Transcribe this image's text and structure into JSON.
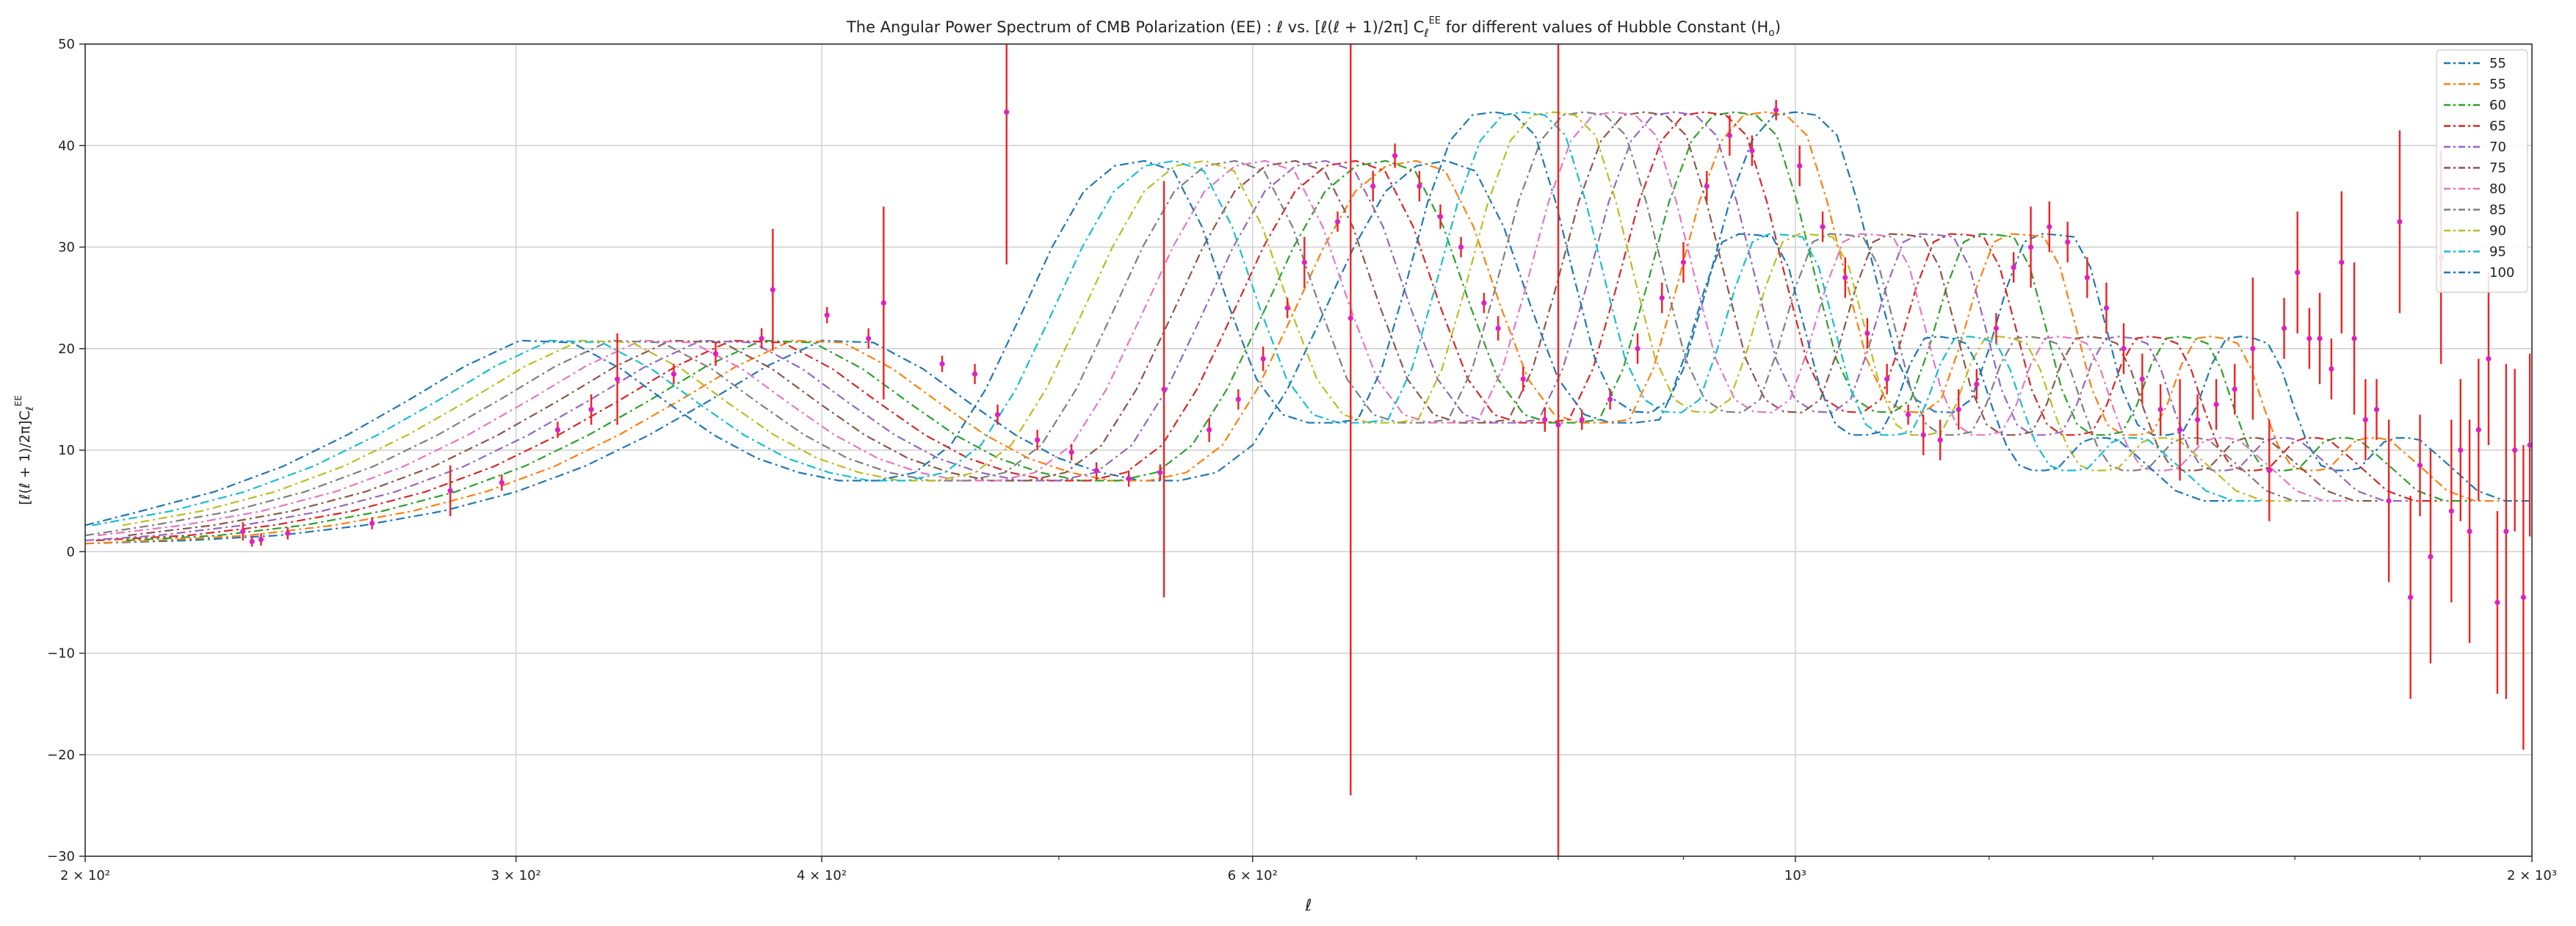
{
  "chart_data": {
    "type": "line",
    "title": "The Angular Power Spectrum of CMB Polarization (EE) : ℓ vs. [ℓ(ℓ + 1)/2π] Cℓ^EE for different values of Hubble Constant (H₀)",
    "xlabel": "ℓ",
    "ylabel": "[ℓ(ℓ + 1)/2π] Cℓ^EE",
    "xscale": "log",
    "xlim": [
      200,
      2000
    ],
    "ylim": [
      -30,
      50
    ],
    "grid": true,
    "legend_position": "top-right",
    "x_ticks": [
      {
        "value": 200,
        "label": "2 × 10²"
      },
      {
        "value": 300,
        "label": "3 × 10²"
      },
      {
        "value": 400,
        "label": "4 × 10²"
      },
      {
        "value": 600,
        "label": "6 × 10²"
      },
      {
        "value": 1000,
        "label": "10³"
      },
      {
        "value": 2000,
        "label": "2 × 10³"
      }
    ],
    "y_ticks": [
      -30,
      -20,
      -10,
      0,
      10,
      20,
      30,
      40,
      50
    ],
    "series": [
      {
        "name": "55",
        "color": "#1f77b4",
        "values": [
          [
            200,
            0.8
          ],
          [
            220,
            1.1
          ],
          [
            240,
            1.6
          ],
          [
            260,
            2.6
          ],
          [
            280,
            4.0
          ],
          [
            300,
            5.9
          ],
          [
            320,
            8.4
          ],
          [
            340,
            11.5
          ],
          [
            360,
            14.9
          ],
          [
            380,
            18.3
          ],
          [
            400,
            20.8
          ],
          [
            420,
            20.6
          ],
          [
            440,
            18.0
          ],
          [
            460,
            14.6
          ],
          [
            480,
            11.5
          ],
          [
            500,
            9.2
          ],
          [
            520,
            7.8
          ],
          [
            540,
            7.0
          ],
          [
            560,
            7.0
          ],
          [
            580,
            7.8
          ],
          [
            600,
            10.5
          ],
          [
            620,
            16.0
          ],
          [
            640,
            23.0
          ],
          [
            660,
            30.0
          ],
          [
            680,
            35.5
          ],
          [
            700,
            38.0
          ],
          [
            720,
            38.5
          ],
          [
            740,
            37.5
          ],
          [
            760,
            32.0
          ],
          [
            780,
            24.0
          ],
          [
            800,
            17.0
          ],
          [
            820,
            13.5
          ],
          [
            840,
            12.7
          ],
          [
            860,
            12.7
          ],
          [
            880,
            13.0
          ],
          [
            900,
            18.0
          ],
          [
            920,
            26.0
          ],
          [
            940,
            34.5
          ],
          [
            960,
            40.5
          ],
          [
            980,
            43.0
          ],
          [
            1000,
            43.3
          ],
          [
            1020,
            43.0
          ],
          [
            1040,
            41.0
          ],
          [
            1060,
            34.5
          ],
          [
            1080,
            26.5
          ],
          [
            1100,
            19.0
          ],
          [
            1120,
            15.0
          ],
          [
            1140,
            13.8
          ],
          [
            1160,
            13.7
          ],
          [
            1180,
            15.0
          ],
          [
            1200,
            20.0
          ],
          [
            1220,
            26.0
          ],
          [
            1240,
            30.5
          ],
          [
            1260,
            31.3
          ],
          [
            1280,
            31.2
          ],
          [
            1300,
            31.0
          ],
          [
            1320,
            28.0
          ],
          [
            1340,
            22.0
          ],
          [
            1360,
            16.0
          ],
          [
            1380,
            12.5
          ],
          [
            1400,
            11.5
          ],
          [
            1420,
            11.5
          ],
          [
            1440,
            11.8
          ],
          [
            1460,
            14.5
          ],
          [
            1480,
            18.5
          ],
          [
            1500,
            21.0
          ],
          [
            1520,
            21.2
          ],
          [
            1540,
            21.0
          ],
          [
            1560,
            20.5
          ],
          [
            1580,
            18.0
          ],
          [
            1600,
            14.0
          ],
          [
            1620,
            10.5
          ],
          [
            1640,
            8.5
          ],
          [
            1660,
            8.0
          ],
          [
            1680,
            8.0
          ],
          [
            1700,
            8.2
          ],
          [
            1720,
            9.5
          ],
          [
            1740,
            10.8
          ],
          [
            1760,
            11.2
          ],
          [
            1780,
            11.2
          ],
          [
            1800,
            11.0
          ],
          [
            1830,
            9.5
          ],
          [
            1860,
            8.0
          ],
          [
            1900,
            6.0
          ],
          [
            1950,
            5.0
          ],
          [
            2000,
            5.0
          ]
        ]
      },
      {
        "name": "55",
        "color": "#ff7f0e",
        "values": []
      },
      {
        "name": "60",
        "color": "#2ca02c",
        "values": []
      },
      {
        "name": "65",
        "color": "#d62728",
        "values": []
      },
      {
        "name": "70",
        "color": "#9467bd",
        "values": []
      },
      {
        "name": "75",
        "color": "#8c564b",
        "values": []
      },
      {
        "name": "80",
        "color": "#e377c2",
        "values": []
      },
      {
        "name": "85",
        "color": "#7f7f7f",
        "values": []
      },
      {
        "name": "90",
        "color": "#bcbd22",
        "values": []
      },
      {
        "name": "95",
        "color": "#17becf",
        "values": []
      },
      {
        "name": "100",
        "color": "#1f77b4",
        "values": []
      }
    ],
    "series_shift_ratio": 0.972,
    "data_points": {
      "name": "measurements",
      "marker_color": "#e020c0",
      "errorbar_color": "#ee2222",
      "points": [
        {
          "x": 232,
          "y": 2.0,
          "err": 0.9
        },
        {
          "x": 234,
          "y": 1.0,
          "err": 0.5
        },
        {
          "x": 236,
          "y": 1.2,
          "err": 0.6
        },
        {
          "x": 242,
          "y": 1.8,
          "err": 0.6
        },
        {
          "x": 262,
          "y": 2.8,
          "err": 0.6
        },
        {
          "x": 282,
          "y": 6.0,
          "err": 2.5
        },
        {
          "x": 296,
          "y": 6.8,
          "err": 0.8
        },
        {
          "x": 312,
          "y": 12.0,
          "err": 0.8
        },
        {
          "x": 322,
          "y": 14.0,
          "err": 1.5
        },
        {
          "x": 330,
          "y": 17.0,
          "err": 4.5
        },
        {
          "x": 348,
          "y": 17.5,
          "err": 1.0
        },
        {
          "x": 362,
          "y": 19.5,
          "err": 1.2
        },
        {
          "x": 378,
          "y": 21.0,
          "err": 1.0
        },
        {
          "x": 382,
          "y": 25.8,
          "err": 6.0
        },
        {
          "x": 402,
          "y": 23.3,
          "err": 0.8
        },
        {
          "x": 418,
          "y": 21.0,
          "err": 1.0
        },
        {
          "x": 424,
          "y": 24.5,
          "err": 9.5
        },
        {
          "x": 448,
          "y": 18.5,
          "err": 0.8
        },
        {
          "x": 462,
          "y": 17.5,
          "err": 1.0
        },
        {
          "x": 472,
          "y": 13.5,
          "err": 1.0
        },
        {
          "x": 476,
          "y": 43.3,
          "err": 15.0
        },
        {
          "x": 490,
          "y": 11.0,
          "err": 1.0
        },
        {
          "x": 506,
          "y": 9.8,
          "err": 0.8
        },
        {
          "x": 518,
          "y": 8.0,
          "err": 0.8
        },
        {
          "x": 534,
          "y": 7.2,
          "err": 0.8
        },
        {
          "x": 550,
          "y": 7.8,
          "err": 0.8
        },
        {
          "x": 552,
          "y": 16.0,
          "err": 20.5
        },
        {
          "x": 576,
          "y": 12.0,
          "err": 1.2
        },
        {
          "x": 592,
          "y": 15.0,
          "err": 1.0
        },
        {
          "x": 606,
          "y": 19.0,
          "err": 1.2
        },
        {
          "x": 620,
          "y": 24.0,
          "err": 1.0
        },
        {
          "x": 630,
          "y": 28.5,
          "err": 2.5
        },
        {
          "x": 650,
          "y": 32.5,
          "err": 1.0
        },
        {
          "x": 658,
          "y": 23.0,
          "err": 47.0
        },
        {
          "x": 672,
          "y": 36.0,
          "err": 1.5
        },
        {
          "x": 686,
          "y": 39.0,
          "err": 1.2
        },
        {
          "x": 702,
          "y": 36.0,
          "err": 1.5
        },
        {
          "x": 716,
          "y": 33.0,
          "err": 1.2
        },
        {
          "x": 730,
          "y": 30.0,
          "err": 1.0
        },
        {
          "x": 746,
          "y": 24.5,
          "err": 1.0
        },
        {
          "x": 756,
          "y": 22.0,
          "err": 1.2
        },
        {
          "x": 774,
          "y": 17.0,
          "err": 1.2
        },
        {
          "x": 790,
          "y": 13.0,
          "err": 1.2
        },
        {
          "x": 800,
          "y": 12.5,
          "err": 49.0
        },
        {
          "x": 818,
          "y": 13.0,
          "err": 1.0
        },
        {
          "x": 840,
          "y": 15.0,
          "err": 1.0
        },
        {
          "x": 862,
          "y": 20.0,
          "err": 1.5
        },
        {
          "x": 882,
          "y": 25.0,
          "err": 1.5
        },
        {
          "x": 900,
          "y": 28.5,
          "err": 2.0
        },
        {
          "x": 920,
          "y": 36.0,
          "err": 1.5
        },
        {
          "x": 940,
          "y": 41.0,
          "err": 2.0
        },
        {
          "x": 960,
          "y": 39.5,
          "err": 1.5
        },
        {
          "x": 982,
          "y": 43.5,
          "err": 1.0
        },
        {
          "x": 1004,
          "y": 38.0,
          "err": 2.0
        },
        {
          "x": 1026,
          "y": 32.0,
          "err": 1.5
        },
        {
          "x": 1048,
          "y": 27.0,
          "err": 2.0
        },
        {
          "x": 1070,
          "y": 21.5,
          "err": 1.5
        },
        {
          "x": 1090,
          "y": 17.0,
          "err": 1.5
        },
        {
          "x": 1112,
          "y": 13.5,
          "err": 1.0
        },
        {
          "x": 1128,
          "y": 11.5,
          "err": 2.0
        },
        {
          "x": 1146,
          "y": 11.0,
          "err": 2.0
        },
        {
          "x": 1166,
          "y": 14.0,
          "err": 2.0
        },
        {
          "x": 1186,
          "y": 16.5,
          "err": 1.5
        },
        {
          "x": 1208,
          "y": 22.0,
          "err": 1.5
        },
        {
          "x": 1228,
          "y": 28.0,
          "err": 1.5
        },
        {
          "x": 1248,
          "y": 30.0,
          "err": 4.0
        },
        {
          "x": 1270,
          "y": 32.0,
          "err": 2.5
        },
        {
          "x": 1292,
          "y": 30.5,
          "err": 2.0
        },
        {
          "x": 1316,
          "y": 27.0,
          "err": 2.0
        },
        {
          "x": 1340,
          "y": 24.0,
          "err": 2.5
        },
        {
          "x": 1362,
          "y": 20.0,
          "err": 2.5
        },
        {
          "x": 1386,
          "y": 17.0,
          "err": 2.5
        },
        {
          "x": 1410,
          "y": 14.0,
          "err": 2.5
        },
        {
          "x": 1436,
          "y": 12.0,
          "err": 5.0
        },
        {
          "x": 1460,
          "y": 13.0,
          "err": 2.5
        },
        {
          "x": 1486,
          "y": 14.5,
          "err": 2.5
        },
        {
          "x": 1512,
          "y": 16.0,
          "err": 2.5
        },
        {
          "x": 1538,
          "y": 20.0,
          "err": 7.0
        },
        {
          "x": 1562,
          "y": 8.0,
          "err": 5.0
        },
        {
          "x": 1584,
          "y": 22.0,
          "err": 3.0
        },
        {
          "x": 1604,
          "y": 27.5,
          "err": 6.0
        },
        {
          "x": 1622,
          "y": 21.0,
          "err": 3.0
        },
        {
          "x": 1638,
          "y": 21.0,
          "err": 4.5
        },
        {
          "x": 1656,
          "y": 18.0,
          "err": 3.0
        },
        {
          "x": 1672,
          "y": 28.5,
          "err": 7.0
        },
        {
          "x": 1692,
          "y": 21.0,
          "err": 7.5
        },
        {
          "x": 1710,
          "y": 13.0,
          "err": 4.0
        },
        {
          "x": 1728,
          "y": 14.0,
          "err": 3.0
        },
        {
          "x": 1748,
          "y": 5.0,
          "err": 8.0
        },
        {
          "x": 1766,
          "y": 32.5,
          "err": 9.0
        },
        {
          "x": 1784,
          "y": -4.5,
          "err": 10.0
        },
        {
          "x": 1800,
          "y": 8.5,
          "err": 5.0
        },
        {
          "x": 1818,
          "y": -0.5,
          "err": 10.5
        },
        {
          "x": 1836,
          "y": 29.0,
          "err": 10.5
        },
        {
          "x": 1854,
          "y": 4.0,
          "err": 9.0
        },
        {
          "x": 1870,
          "y": 10.0,
          "err": 7.0
        },
        {
          "x": 1886,
          "y": 2.0,
          "err": 11.0
        },
        {
          "x": 1902,
          "y": 12.0,
          "err": 7.0
        },
        {
          "x": 1920,
          "y": 19.0,
          "err": 8.5
        },
        {
          "x": 1936,
          "y": -5.0,
          "err": 9.0
        },
        {
          "x": 1952,
          "y": 2.0,
          "err": 16.5
        },
        {
          "x": 1968,
          "y": 10.0,
          "err": 8.0
        },
        {
          "x": 1984,
          "y": -4.5,
          "err": 15.0
        },
        {
          "x": 1996,
          "y": 10.5,
          "err": 9.0
        }
      ]
    }
  }
}
